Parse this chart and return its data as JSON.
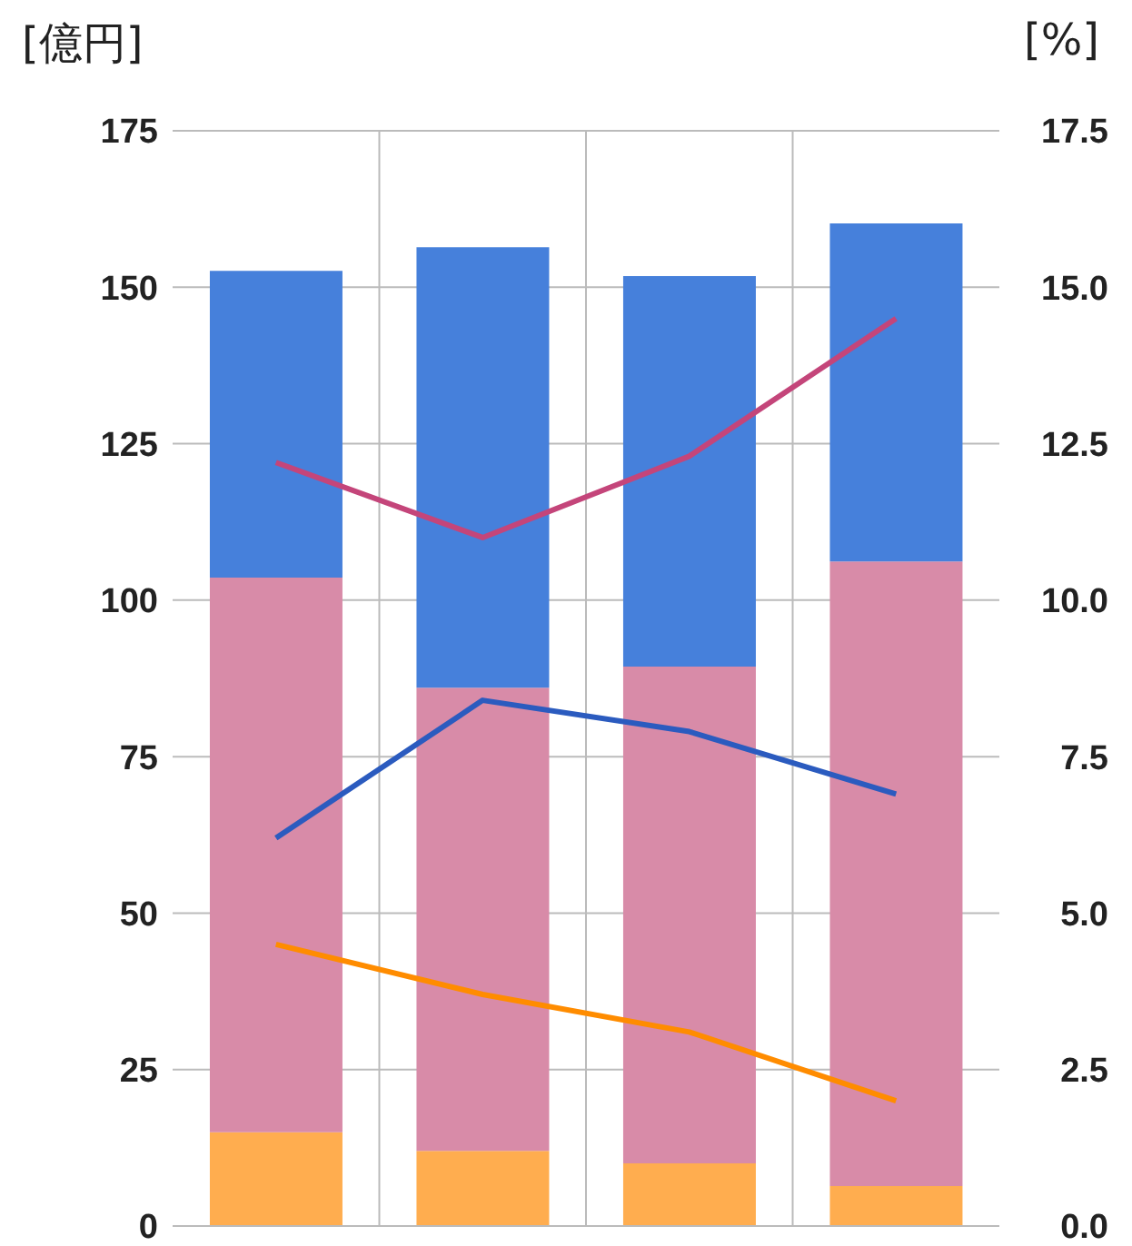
{
  "chart_data": {
    "type": "bar",
    "stacked": true,
    "ylabel": "[億円]",
    "y2label": "[%]",
    "categories": [
      null,
      null,
      null,
      null
    ],
    "series": [
      {
        "color": "#ffad4f",
        "values": [
          15,
          12,
          10,
          6.4
        ]
      },
      {
        "color": "#d88ba8",
        "values": [
          88.6,
          74,
          79.4,
          99.8
        ]
      },
      {
        "color": "#4680db",
        "values": [
          49,
          70.4,
          62.4,
          54
        ]
      },
      {
        "type": "line",
        "axis": "y2",
        "color": "#c4457a",
        "values": [
          12.2,
          11.0,
          12.3,
          14.5
        ]
      },
      {
        "type": "line",
        "axis": "y2",
        "color": "#2b5bbf",
        "values": [
          6.2,
          8.4,
          7.9,
          6.9
        ]
      },
      {
        "type": "line",
        "axis": "y2",
        "color": "#ff8c00",
        "values": [
          4.5,
          3.7,
          3.1,
          2.0
        ]
      }
    ],
    "ylim": [
      0,
      175
    ],
    "yticks": [
      0,
      25,
      50,
      75,
      100,
      125,
      150,
      175
    ],
    "y2lim": [
      0,
      17.5
    ],
    "y2ticks": [
      {
        "value": 0,
        "label": "0.0"
      },
      {
        "value": 2.5,
        "label": "2.5"
      },
      {
        "value": 5,
        "label": "5.0"
      },
      {
        "value": 7.5,
        "label": "7.5"
      },
      {
        "value": 10,
        "label": "10.0"
      },
      {
        "value": 12.5,
        "label": "12.5"
      },
      {
        "value": 15,
        "label": "15.0"
      },
      {
        "value": 17.5,
        "label": "17.5"
      }
    ],
    "grid": true,
    "legend": false,
    "marker": "none",
    "line_style": "solid"
  }
}
